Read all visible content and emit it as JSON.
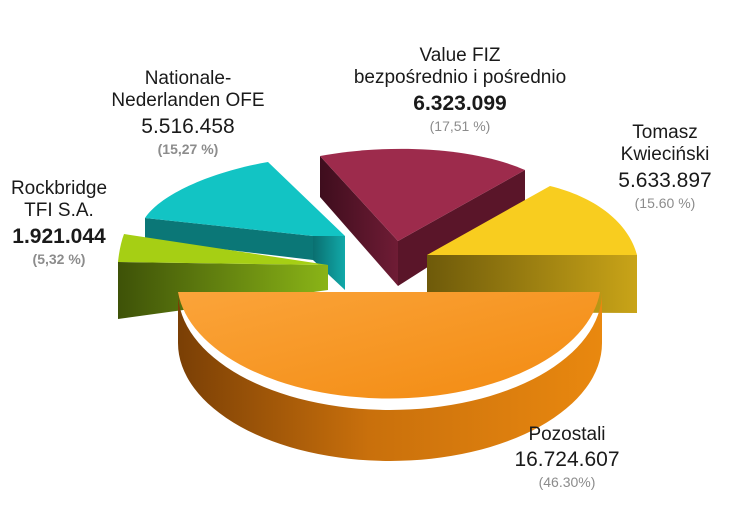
{
  "chart_data": {
    "type": "pie",
    "title": "",
    "style": "3d-exploded",
    "slices": [
      {
        "label_lines": [
          "Value FIZ",
          "bezpośrednio i pośrednio"
        ],
        "value": "6.323.099",
        "amount": 6323099,
        "percent_text": "(17,51 %)",
        "percent": 17.51,
        "color": "#9b2a4a"
      },
      {
        "label_lines": [
          "Tomasz",
          "Kwieciński"
        ],
        "value": "5.633.897",
        "amount": 5633897,
        "percent_text": "(15.60 %)",
        "percent": 15.6,
        "color": "#f7cb1e"
      },
      {
        "label_lines": [
          "Pozostali"
        ],
        "value": "16.724.607",
        "amount": 16724607,
        "percent_text": "(46.30%)",
        "percent": 46.3,
        "color": "#f7941d"
      },
      {
        "label_lines": [
          "Rockbridge",
          "TFI S.A."
        ],
        "value": "1.921.044",
        "amount": 1921044,
        "percent_text": "(5,32 %)",
        "percent": 5.32,
        "color": "#9cc41a"
      },
      {
        "label_lines": [
          "Nationale-",
          "Nederlanden OFE"
        ],
        "value": "5.516.458",
        "amount": 5516458,
        "percent_text": "(15,27 %)",
        "percent": 15.27,
        "color": "#12c2c2"
      }
    ]
  }
}
